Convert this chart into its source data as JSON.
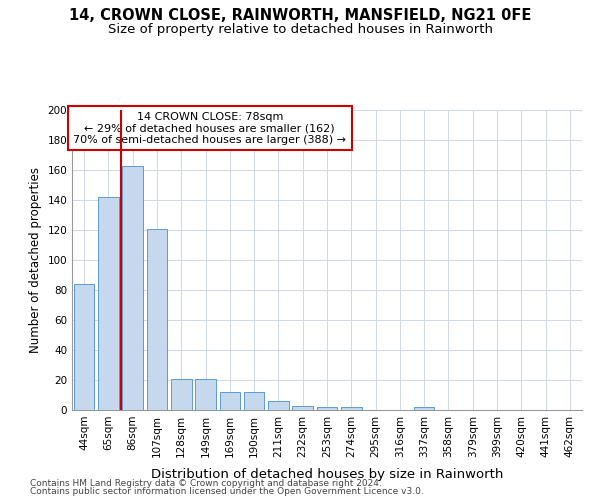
{
  "title": "14, CROWN CLOSE, RAINWORTH, MANSFIELD, NG21 0FE",
  "subtitle": "Size of property relative to detached houses in Rainworth",
  "xlabel": "Distribution of detached houses by size in Rainworth",
  "ylabel": "Number of detached properties",
  "categories": [
    "44sqm",
    "65sqm",
    "86sqm",
    "107sqm",
    "128sqm",
    "149sqm",
    "169sqm",
    "190sqm",
    "211sqm",
    "232sqm",
    "253sqm",
    "274sqm",
    "295sqm",
    "316sqm",
    "337sqm",
    "358sqm",
    "379sqm",
    "399sqm",
    "420sqm",
    "441sqm",
    "462sqm"
  ],
  "values": [
    84,
    142,
    163,
    121,
    21,
    21,
    12,
    12,
    6,
    3,
    2,
    2,
    0,
    0,
    2,
    0,
    0,
    0,
    0,
    0,
    0
  ],
  "bar_color": "#c5d8ed",
  "bar_edge_color": "#5b9bd5",
  "red_line_x": 1.5,
  "highlight_color": "#cc0000",
  "annotation_text": "14 CROWN CLOSE: 78sqm\n← 29% of detached houses are smaller (162)\n70% of semi-detached houses are larger (388) →",
  "annotation_box_edgecolor": "#cc0000",
  "ylim": [
    0,
    200
  ],
  "yticks": [
    0,
    20,
    40,
    60,
    80,
    100,
    120,
    140,
    160,
    180,
    200
  ],
  "grid_color": "#d0d8e8",
  "background_color": "#ffffff",
  "footnote_line1": "Contains HM Land Registry data © Crown copyright and database right 2024.",
  "footnote_line2": "Contains public sector information licensed under the Open Government Licence v3.0.",
  "title_fontsize": 10.5,
  "subtitle_fontsize": 9.5,
  "xlabel_fontsize": 9.5,
  "ylabel_fontsize": 8.5,
  "tick_fontsize": 7.5,
  "annotation_fontsize": 8
}
